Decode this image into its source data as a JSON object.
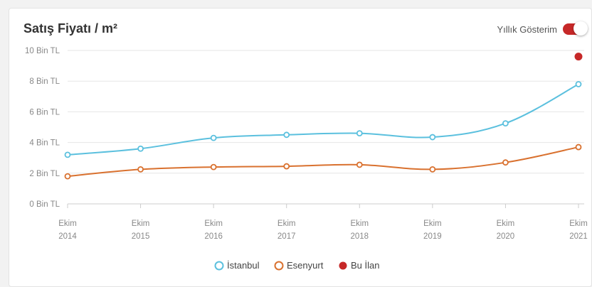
{
  "header": {
    "title": "Satış Fiyatı / m²",
    "toggle_label": "Yıllık Gösterim",
    "toggle_on": true
  },
  "colors": {
    "istanbul": "#5bc0de",
    "esenyurt": "#d9712f",
    "bu_ilan": "#c62828",
    "toggle": "#c62828"
  },
  "chart_data": {
    "type": "line",
    "title": "Satış Fiyatı / m²",
    "x_categories": [
      {
        "month": "Ekim",
        "year": "2014"
      },
      {
        "month": "Ekim",
        "year": "2015"
      },
      {
        "month": "Ekim",
        "year": "2016"
      },
      {
        "month": "Ekim",
        "year": "2017"
      },
      {
        "month": "Ekim",
        "year": "2018"
      },
      {
        "month": "Ekim",
        "year": "2019"
      },
      {
        "month": "Ekim",
        "year": "2020"
      },
      {
        "month": "Ekim",
        "year": "2021"
      }
    ],
    "y_ticks": [
      "0 Bin TL",
      "2 Bin TL",
      "4 Bin TL",
      "6 Bin TL",
      "8 Bin TL",
      "10 Bin TL"
    ],
    "y_tick_values": [
      0,
      2,
      4,
      6,
      8,
      10
    ],
    "ylim": [
      0,
      10
    ],
    "y_unit": "Bin TL",
    "grid": true,
    "legend_position": "bottom-center",
    "series": [
      {
        "name": "İstanbul",
        "color": "#5bc0de",
        "values": [
          3.2,
          3.6,
          4.3,
          4.5,
          4.6,
          4.35,
          5.25,
          7.8
        ]
      },
      {
        "name": "Esenyurt",
        "color": "#d9712f",
        "values": [
          1.8,
          2.25,
          2.4,
          2.45,
          2.55,
          2.25,
          2.7,
          3.7
        ]
      }
    ],
    "highlight": {
      "name": "Bu İlan",
      "color": "#c62828",
      "x_index": 7,
      "value": 9.6
    }
  }
}
